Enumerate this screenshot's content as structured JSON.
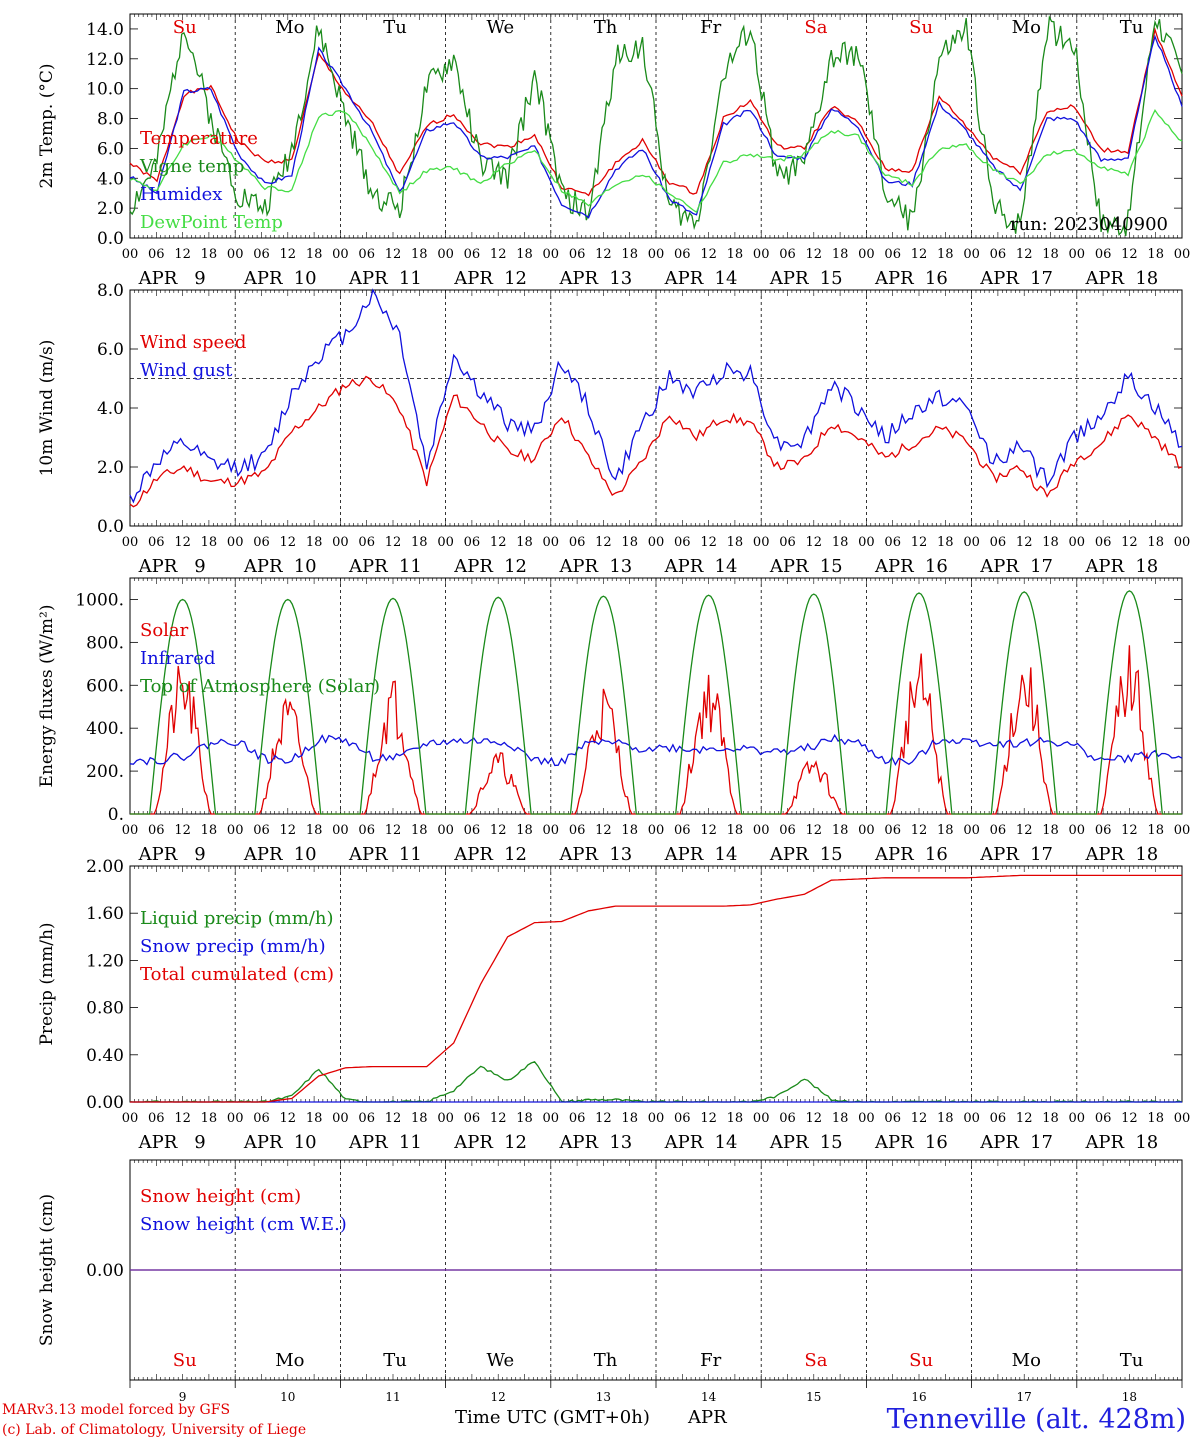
{
  "days": [
    "9",
    "10",
    "11",
    "12",
    "13",
    "14",
    "15",
    "16",
    "17",
    "18"
  ],
  "weekdays": [
    "Su",
    "Mo",
    "Tu",
    "We",
    "Th",
    "Fr",
    "Sa",
    "Su",
    "Mo",
    "Tu"
  ],
  "weekday_colors": [
    "#e00000",
    "#000000",
    "#000000",
    "#000000",
    "#000000",
    "#000000",
    "#e00000",
    "#e00000",
    "#000000",
    "#000000"
  ],
  "month_label": "APR",
  "hour_ticks": [
    "00",
    "06",
    "12",
    "18"
  ],
  "run_label": "run: 2023040900",
  "footer": {
    "credit1": "MARv3.13 model forced by GFS",
    "credit2": "(c) Lab. of Climatology, University of Liege",
    "xlabel": "Time UTC (GMT+0h)",
    "month": "APR",
    "station": "Tenneville (alt. 428m)"
  },
  "colors": {
    "red": "#e00000",
    "darkgreen": "#1a8a1a",
    "blue": "#1010dd",
    "lightgreen": "#44dd44",
    "purple": "#7030a0",
    "footer_red": "#e00000",
    "station_blue": "#2020dd"
  },
  "chart_data": [
    {
      "type": "line",
      "ylabel": "2m Temp. (°C)",
      "ylim": [
        0,
        15
      ],
      "yticks": [
        "0.0",
        "2.0",
        "4.0",
        "6.0",
        "8.0",
        "10.0",
        "12.0",
        "14.0"
      ],
      "series": [
        {
          "name": "Temperature",
          "color": "#e00000",
          "values": [
            5.0,
            3.8,
            9.6,
            10.1,
            6.5,
            5.1,
            5.2,
            12.3,
            9.7,
            7.6,
            4.2,
            7.5,
            8.3,
            6.3,
            6.1,
            6.9,
            3.4,
            2.9,
            5.0,
            6.5,
            3.7,
            3.0,
            8.0,
            9.2,
            6.1,
            6.0,
            8.8,
            7.7,
            4.6,
            4.5,
            9.5,
            7.5,
            5.4,
            4.4,
            8.5,
            8.8,
            5.9,
            5.8,
            13.8,
            9.5
          ]
        },
        {
          "name": "Vigne temp",
          "color": "#1a8a1a",
          "values": [
            2.0,
            5.0,
            14.5,
            8.0,
            3.0,
            2.0,
            6.0,
            14.0,
            8.0,
            3.0,
            2.0,
            10.0,
            12.0,
            5.0,
            4.0,
            11.0,
            3.0,
            1.5,
            12.0,
            13.0,
            2.0,
            1.0,
            11.0,
            14.0,
            4.0,
            5.0,
            12.0,
            12.5,
            3.0,
            1.0,
            12.0,
            14.0,
            2.0,
            1.0,
            14.0,
            13.0,
            1.0,
            1.0,
            15.0,
            11.0
          ]
        },
        {
          "name": "Humidex",
          "color": "#1010dd",
          "values": [
            4.1,
            3.0,
            9.8,
            10.0,
            5.7,
            3.6,
            4.2,
            12.6,
            10.0,
            7.0,
            3.0,
            7.2,
            7.8,
            5.4,
            5.4,
            6.1,
            2.3,
            1.5,
            4.6,
            6.0,
            2.6,
            1.5,
            7.6,
            8.6,
            5.4,
            5.4,
            8.7,
            7.5,
            3.8,
            3.6,
            9.0,
            7.2,
            4.8,
            3.2,
            8.0,
            8.0,
            5.2,
            5.4,
            13.6,
            8.8
          ]
        },
        {
          "name": "DewPoint Temp",
          "color": "#44dd44",
          "values": [
            4.0,
            3.2,
            6.3,
            6.9,
            5.2,
            3.4,
            3.2,
            8.2,
            8.5,
            6.0,
            3.0,
            4.5,
            4.7,
            3.6,
            5.0,
            5.9,
            3.2,
            2.2,
            3.6,
            4.3,
            3.0,
            1.8,
            5.0,
            5.6,
            5.2,
            5.6,
            7.2,
            6.8,
            4.2,
            3.6,
            6.0,
            6.2,
            4.6,
            3.6,
            5.6,
            5.8,
            4.8,
            4.2,
            8.5,
            6.5
          ]
        }
      ]
    },
    {
      "type": "line",
      "ylabel": "10m Wind (m/s)",
      "ylim": [
        0,
        8
      ],
      "yticks": [
        "0.0",
        "2.0",
        "4.0",
        "6.0",
        "8.0"
      ],
      "reference_line": 5,
      "series": [
        {
          "name": "Wind speed",
          "color": "#e00000",
          "values": [
            0.6,
            1.6,
            2.0,
            1.5,
            1.5,
            1.8,
            3.2,
            4.0,
            4.8,
            5.0,
            4.0,
            1.5,
            4.4,
            3.5,
            2.5,
            2.3,
            3.8,
            2.3,
            1.0,
            2.2,
            3.8,
            3.0,
            3.7,
            3.5,
            2.0,
            2.2,
            3.5,
            3.0,
            2.3,
            2.8,
            3.3,
            2.9,
            1.6,
            2.0,
            1.0,
            2.2,
            2.8,
            3.8,
            3.0,
            2.0
          ]
        },
        {
          "name": "Wind gust",
          "color": "#1010dd",
          "values": [
            0.9,
            2.2,
            2.8,
            2.1,
            2.0,
            2.3,
            4.5,
            5.8,
            6.5,
            7.9,
            6.5,
            2.0,
            5.8,
            4.5,
            3.5,
            3.2,
            5.6,
            4.0,
            1.5,
            3.5,
            5.0,
            4.5,
            5.3,
            5.2,
            2.8,
            2.9,
            4.8,
            4.0,
            3.0,
            3.8,
            4.4,
            4.0,
            2.2,
            2.7,
            1.5,
            3.0,
            3.8,
            5.0,
            4.0,
            2.7
          ]
        }
      ]
    },
    {
      "type": "line",
      "ylabel": "Energy fluxes (W/m²)",
      "ylim": [
        0,
        1100
      ],
      "yticks": [
        "0.",
        "200.",
        "400.",
        "600.",
        "800.",
        "1000."
      ],
      "series": [
        {
          "name": "Solar",
          "color": "#e00000",
          "peaks": [
            720,
            560,
            650,
            300,
            620,
            690,
            280,
            760,
            770,
            800
          ]
        },
        {
          "name": "Infrared",
          "color": "#1010dd",
          "values": [
            250,
            250,
            270,
            330,
            340,
            255,
            250,
            350,
            345,
            265,
            260,
            330,
            340,
            340,
            335,
            250,
            240,
            330,
            330,
            305,
            310,
            300,
            310,
            300,
            290,
            300,
            350,
            330,
            250,
            240,
            350,
            340,
            330,
            330,
            340,
            320,
            250,
            260,
            285,
            260
          ]
        },
        {
          "name": "Top of Atmosphere (Solar)",
          "color": "#1a8a1a",
          "peaks": [
            1000,
            1000,
            1005,
            1010,
            1015,
            1020,
            1025,
            1030,
            1035,
            1040
          ]
        }
      ]
    },
    {
      "type": "line",
      "ylabel": "Precip (mm/h)",
      "ylim": [
        0,
        2
      ],
      "yticks": [
        "0.00",
        "0.40",
        "0.80",
        "1.20",
        "1.60",
        "2.00"
      ],
      "series": [
        {
          "name": "Liquid precip (mm/h)",
          "color": "#1a8a1a",
          "values": [
            0,
            0,
            0,
            0,
            0,
            0,
            0.05,
            0.28,
            0.02,
            0,
            0,
            0,
            0.1,
            0.3,
            0.18,
            0.35,
            0,
            0.02,
            0.02,
            0,
            0,
            0,
            0,
            0,
            0.05,
            0.2,
            0.02,
            0,
            0,
            0,
            0,
            0,
            0,
            0,
            0,
            0,
            0,
            0,
            0,
            0
          ]
        },
        {
          "name": "Snow precip (mm/h)",
          "color": "#1010dd",
          "values": [
            0,
            0,
            0,
            0,
            0,
            0,
            0,
            0,
            0,
            0,
            0,
            0,
            0,
            0,
            0,
            0,
            0,
            0,
            0,
            0,
            0,
            0,
            0,
            0,
            0,
            0,
            0,
            0,
            0,
            0,
            0,
            0,
            0,
            0,
            0,
            0,
            0,
            0,
            0,
            0
          ]
        },
        {
          "name": "Total cumulated (cm)",
          "color": "#e00000",
          "values": [
            0,
            0,
            0,
            0,
            0,
            0,
            0.03,
            0.22,
            0.29,
            0.3,
            0.3,
            0.3,
            0.5,
            1.0,
            1.4,
            1.52,
            1.53,
            1.62,
            1.66,
            1.66,
            1.66,
            1.66,
            1.66,
            1.67,
            1.72,
            1.76,
            1.88,
            1.89,
            1.9,
            1.9,
            1.9,
            1.9,
            1.91,
            1.92,
            1.92,
            1.92,
            1.92,
            1.92,
            1.92,
            1.92
          ]
        }
      ]
    },
    {
      "type": "line",
      "ylabel": "Snow height (cm)",
      "yticks": [
        "0.00"
      ],
      "series": [
        {
          "name": "Snow height (cm)",
          "color": "#e00000",
          "values": [
            0,
            0,
            0,
            0,
            0,
            0,
            0,
            0,
            0,
            0,
            0,
            0,
            0,
            0,
            0,
            0,
            0,
            0,
            0,
            0,
            0,
            0,
            0,
            0,
            0,
            0,
            0,
            0,
            0,
            0,
            0,
            0,
            0,
            0,
            0,
            0,
            0,
            0,
            0,
            0
          ]
        },
        {
          "name": "Snow height (cm W.E.)",
          "color": "#1010dd",
          "values": [
            0,
            0,
            0,
            0,
            0,
            0,
            0,
            0,
            0,
            0,
            0,
            0,
            0,
            0,
            0,
            0,
            0,
            0,
            0,
            0,
            0,
            0,
            0,
            0,
            0,
            0,
            0,
            0,
            0,
            0,
            0,
            0,
            0,
            0,
            0,
            0,
            0,
            0,
            0,
            0
          ]
        }
      ]
    }
  ]
}
